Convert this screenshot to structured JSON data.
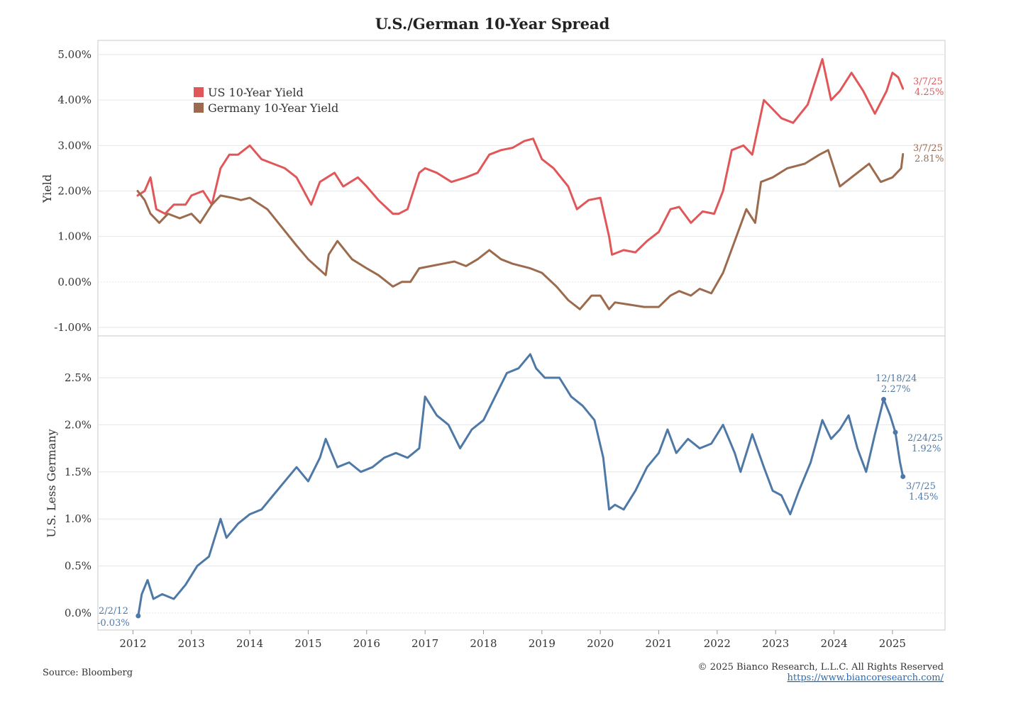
{
  "chart_data": {
    "title": "U.S./German 10-Year Spread",
    "type": "line",
    "x_tick_labels": [
      "2012",
      "2013",
      "2014",
      "2015",
      "2016",
      "2017",
      "2018",
      "2019",
      "2020",
      "2021",
      "2022",
      "2023",
      "2024",
      "2025"
    ],
    "x_range": [
      2011.4,
      2025.9
    ],
    "panels": [
      {
        "ylabel": "Yield",
        "ylim": [
          -1.0,
          5.0
        ],
        "y_ticks": [
          -1,
          0,
          1,
          2,
          3,
          4,
          5
        ],
        "y_tick_labels": [
          "-1.00%",
          "0.00%",
          "1.00%",
          "2.00%",
          "3.00%",
          "4.00%",
          "5.00%"
        ],
        "legend": [
          "US 10-Year Yield",
          "Germany 10-Year Yield"
        ],
        "series": [
          {
            "name": "US 10-Year Yield",
            "color": "#e15759",
            "x": [
              2012.08,
              2012.2,
              2012.3,
              2012.4,
              2012.55,
              2012.7,
              2012.9,
              2013.0,
              2013.2,
              2013.35,
              2013.5,
              2013.65,
              2013.8,
              2014.0,
              2014.2,
              2014.4,
              2014.6,
              2014.8,
              2015.05,
              2015.2,
              2015.45,
              2015.6,
              2015.85,
              2016.0,
              2016.2,
              2016.45,
              2016.55,
              2016.7,
              2016.9,
              2017.0,
              2017.2,
              2017.45,
              2017.7,
              2017.9,
              2018.1,
              2018.3,
              2018.5,
              2018.7,
              2018.85,
              2019.0,
              2019.2,
              2019.45,
              2019.6,
              2019.8,
              2020.0,
              2020.15,
              2020.2,
              2020.4,
              2020.6,
              2020.8,
              2021.0,
              2021.2,
              2021.35,
              2021.55,
              2021.75,
              2021.95,
              2022.1,
              2022.25,
              2022.45,
              2022.6,
              2022.8,
              2022.95,
              2023.1,
              2023.3,
              2023.55,
              2023.8,
              2023.95,
              2024.1,
              2024.3,
              2024.5,
              2024.7,
              2024.9,
              2025.0,
              2025.1,
              2025.18
            ],
            "values": [
              1.9,
              2.0,
              2.3,
              1.6,
              1.5,
              1.7,
              1.7,
              1.9,
              2.0,
              1.7,
              2.5,
              2.8,
              2.8,
              3.0,
              2.7,
              2.6,
              2.5,
              2.3,
              1.7,
              2.2,
              2.4,
              2.1,
              2.3,
              2.1,
              1.8,
              1.5,
              1.5,
              1.6,
              2.4,
              2.5,
              2.4,
              2.2,
              2.3,
              2.4,
              2.8,
              2.9,
              2.95,
              3.1,
              3.15,
              2.7,
              2.5,
              2.1,
              1.6,
              1.8,
              1.85,
              1.0,
              0.6,
              0.7,
              0.65,
              0.9,
              1.1,
              1.6,
              1.65,
              1.3,
              1.55,
              1.5,
              2.0,
              2.9,
              3.0,
              2.8,
              4.0,
              3.8,
              3.6,
              3.5,
              3.9,
              4.9,
              4.0,
              4.2,
              4.6,
              4.2,
              3.7,
              4.2,
              4.6,
              4.5,
              4.25
            ]
          },
          {
            "name": "Germany 10-Year Yield",
            "color": "#9c6b4e",
            "x": [
              2012.08,
              2012.2,
              2012.3,
              2012.45,
              2012.6,
              2012.8,
              2013.0,
              2013.15,
              2013.35,
              2013.5,
              2013.7,
              2013.85,
              2014.0,
              2014.3,
              2014.55,
              2014.8,
              2015.0,
              2015.3,
              2015.35,
              2015.5,
              2015.75,
              2016.0,
              2016.2,
              2016.45,
              2016.6,
              2016.75,
              2016.9,
              2017.1,
              2017.3,
              2017.5,
              2017.7,
              2017.9,
              2018.1,
              2018.3,
              2018.5,
              2018.8,
              2019.0,
              2019.25,
              2019.45,
              2019.65,
              2019.85,
              2020.0,
              2020.15,
              2020.25,
              2020.5,
              2020.75,
              2021.0,
              2021.2,
              2021.35,
              2021.55,
              2021.7,
              2021.9,
              2022.1,
              2022.3,
              2022.5,
              2022.65,
              2022.75,
              2022.95,
              2023.2,
              2023.5,
              2023.75,
              2023.9,
              2024.1,
              2024.4,
              2024.6,
              2024.8,
              2025.0,
              2025.15,
              2025.18
            ],
            "values": [
              2.0,
              1.8,
              1.5,
              1.3,
              1.5,
              1.4,
              1.5,
              1.3,
              1.7,
              1.9,
              1.85,
              1.8,
              1.85,
              1.6,
              1.2,
              0.8,
              0.5,
              0.15,
              0.6,
              0.9,
              0.5,
              0.3,
              0.15,
              -0.1,
              0.0,
              0.0,
              0.3,
              0.35,
              0.4,
              0.45,
              0.35,
              0.5,
              0.7,
              0.5,
              0.4,
              0.3,
              0.2,
              -0.1,
              -0.4,
              -0.6,
              -0.3,
              -0.3,
              -0.6,
              -0.45,
              -0.5,
              -0.55,
              -0.55,
              -0.3,
              -0.2,
              -0.3,
              -0.15,
              -0.25,
              0.2,
              0.9,
              1.6,
              1.3,
              2.2,
              2.3,
              2.5,
              2.6,
              2.8,
              2.9,
              2.1,
              2.4,
              2.6,
              2.2,
              2.3,
              2.5,
              2.81
            ]
          }
        ],
        "annotations": [
          {
            "date": "3/7/25",
            "value": "4.25%",
            "color": "#e15759"
          },
          {
            "date": "3/7/25",
            "value": "2.81%",
            "color": "#9c6b4e"
          }
        ]
      },
      {
        "ylabel": "U.S. Less Germany",
        "ylim": [
          -0.15,
          2.9
        ],
        "y_ticks": [
          0,
          0.5,
          1.0,
          1.5,
          2.0,
          2.5
        ],
        "y_tick_labels": [
          "0.0%",
          "0.5%",
          "1.0%",
          "1.5%",
          "2.0%",
          "2.5%"
        ],
        "series": [
          {
            "name": "U.S. Less Germany",
            "color": "#4e79a7",
            "x": [
              2012.09,
              2012.15,
              2012.25,
              2012.35,
              2012.5,
              2012.7,
              2012.9,
              2013.1,
              2013.3,
              2013.5,
              2013.6,
              2013.8,
              2014.0,
              2014.2,
              2014.4,
              2014.6,
              2014.8,
              2015.0,
              2015.2,
              2015.3,
              2015.5,
              2015.7,
              2015.9,
              2016.1,
              2016.3,
              2016.5,
              2016.7,
              2016.9,
              2017.0,
              2017.2,
              2017.4,
              2017.6,
              2017.8,
              2018.0,
              2018.2,
              2018.4,
              2018.6,
              2018.8,
              2018.9,
              2019.05,
              2019.3,
              2019.5,
              2019.7,
              2019.9,
              2020.05,
              2020.15,
              2020.25,
              2020.4,
              2020.6,
              2020.8,
              2021.0,
              2021.15,
              2021.3,
              2021.5,
              2021.7,
              2021.9,
              2022.1,
              2022.3,
              2022.4,
              2022.6,
              2022.8,
              2022.95,
              2023.1,
              2023.25,
              2023.4,
              2023.6,
              2023.8,
              2023.95,
              2024.1,
              2024.25,
              2024.4,
              2024.55,
              2024.7,
              2024.85,
              2024.96,
              2025.05,
              2025.13,
              2025.18
            ],
            "values": [
              -0.03,
              0.2,
              0.35,
              0.15,
              0.2,
              0.15,
              0.3,
              0.5,
              0.6,
              1.0,
              0.8,
              0.95,
              1.05,
              1.1,
              1.25,
              1.4,
              1.55,
              1.4,
              1.65,
              1.85,
              1.55,
              1.6,
              1.5,
              1.55,
              1.65,
              1.7,
              1.65,
              1.75,
              2.3,
              2.1,
              2.0,
              1.75,
              1.95,
              2.05,
              2.3,
              2.55,
              2.6,
              2.75,
              2.6,
              2.5,
              2.5,
              2.3,
              2.2,
              2.05,
              1.65,
              1.1,
              1.15,
              1.1,
              1.3,
              1.55,
              1.7,
              1.95,
              1.7,
              1.85,
              1.75,
              1.8,
              2.0,
              1.7,
              1.5,
              1.9,
              1.55,
              1.3,
              1.25,
              1.05,
              1.3,
              1.6,
              2.05,
              1.85,
              1.95,
              2.1,
              1.75,
              1.5,
              1.9,
              2.27,
              2.1,
              1.92,
              1.6,
              1.45
            ]
          }
        ],
        "annotations": [
          {
            "date": "2/2/12",
            "value": "-0.03%",
            "color": "#4e79a7"
          },
          {
            "date": "12/18/24",
            "value": "2.27%",
            "color": "#4e79a7"
          },
          {
            "date": "2/24/25",
            "value": "1.92%",
            "color": "#4e79a7"
          },
          {
            "date": "3/7/25",
            "value": "1.45%",
            "color": "#4e79a7"
          }
        ]
      }
    ]
  },
  "footer": {
    "source": "Source: Bloomberg",
    "copyright": "© 2025 Bianco Research, L.L.C. All Rights Reserved",
    "url": "https://www.biancoresearch.com/"
  }
}
